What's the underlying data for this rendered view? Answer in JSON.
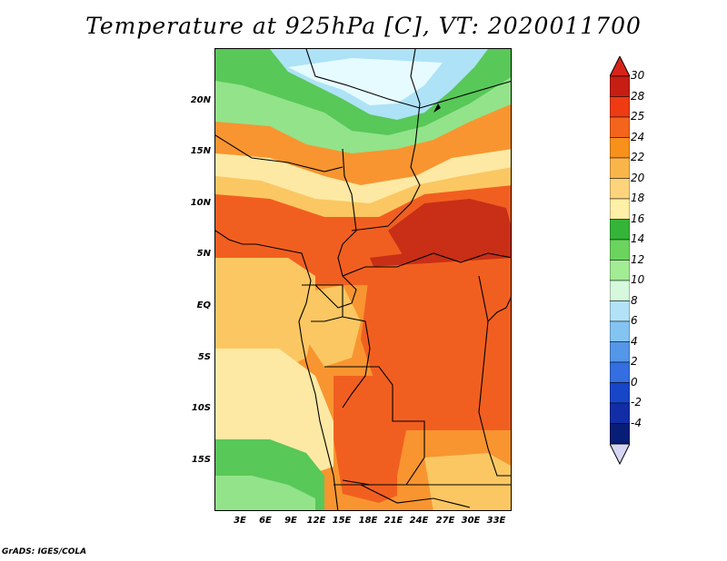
{
  "title": "Temperature at 925hPa [C], VT: 2020011700",
  "credit": "GrADS: IGES/COLA",
  "lat_labels": [
    "20N",
    "15N",
    "10N",
    "5N",
    "EQ",
    "5S",
    "10S",
    "15S"
  ],
  "lon_labels": [
    "3E",
    "6E",
    "9E",
    "12E",
    "15E",
    "18E",
    "21E",
    "24E",
    "27E",
    "30E",
    "33E"
  ],
  "colorbar": {
    "labels": [
      "30",
      "28",
      "25",
      "24",
      "22",
      "20",
      "18",
      "16",
      "14",
      "12",
      "10",
      "8",
      "6",
      "4",
      "2",
      "0",
      "-2",
      "-4"
    ],
    "colors": [
      "#c61e12",
      "#ee3b14",
      "#f4641c",
      "#f7911c",
      "#fab54a",
      "#fdd47c",
      "#fef0a6",
      "#34b538",
      "#6bd45e",
      "#a2ec94",
      "#d6f8dc",
      "#b2e2f7",
      "#84c4f3",
      "#5496e8",
      "#346ee1",
      "#1846c9",
      "#112ea6",
      "#081d75"
    ],
    "top_arrow_color": "#d8231a",
    "bottom_arrow_color": "#d6d6f4"
  },
  "colors": {
    "hot": "#c82f16",
    "warm_orange": "#f15f20",
    "orange": "#f89530",
    "light_orange": "#fbc762",
    "yellow": "#fde9a4",
    "green": "#58c858",
    "light_green": "#93e38a",
    "cool_blue": "#aee2f6",
    "pale_blue": "#e6fbff"
  }
}
